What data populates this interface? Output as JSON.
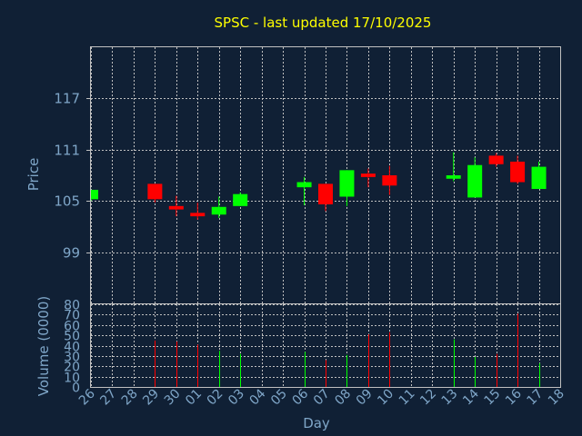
{
  "chart_data": [
    {
      "type": "candlestick",
      "title": "SPSC - last updated 17/10/2025",
      "ylabel": "Price",
      "xlabel": "Day",
      "ylim": [
        93,
        123
      ],
      "y_ticks": [
        "117",
        "111",
        "105",
        "99"
      ],
      "y_tick_values": [
        117,
        111,
        105,
        99
      ],
      "x_tick_labels": [
        "26",
        "27",
        "28",
        "29",
        "30",
        "01",
        "02",
        "03",
        "04",
        "05",
        "06",
        "07",
        "08",
        "09",
        "10",
        "11",
        "12",
        "13",
        "14",
        "15",
        "16",
        "17",
        "18"
      ],
      "grid": true,
      "colors": {
        "up": "#00ff00",
        "down": "#ff0000",
        "title": "#ffff00",
        "text": "#7fa6c8",
        "background": "#102035",
        "grid": "#c0c0c0"
      },
      "candles": [
        {
          "day": "26",
          "open": 105.2,
          "high": 106.3,
          "low": 105.0,
          "close": 106.3
        },
        {
          "day": "29",
          "open": 107.0,
          "high": 107.0,
          "low": 104.8,
          "close": 105.2
        },
        {
          "day": "30",
          "open": 104.4,
          "high": 105.6,
          "low": 103.2,
          "close": 104.0
        },
        {
          "day": "01",
          "open": 103.6,
          "high": 104.8,
          "low": 102.8,
          "close": 103.2
        },
        {
          "day": "02",
          "open": 103.4,
          "high": 105.5,
          "low": 103.0,
          "close": 104.3
        },
        {
          "day": "03",
          "open": 104.4,
          "high": 106.0,
          "low": 104.4,
          "close": 105.8
        },
        {
          "day": "06",
          "open": 106.6,
          "high": 107.8,
          "low": 104.5,
          "close": 107.2
        },
        {
          "day": "07",
          "open": 107.0,
          "high": 107.0,
          "low": 103.8,
          "close": 104.6
        },
        {
          "day": "08",
          "open": 105.5,
          "high": 108.6,
          "low": 104.4,
          "close": 108.6
        },
        {
          "day": "09",
          "open": 108.2,
          "high": 108.8,
          "low": 106.6,
          "close": 107.8
        },
        {
          "day": "10",
          "open": 108.0,
          "high": 109.1,
          "low": 105.7,
          "close": 106.8
        },
        {
          "day": "13",
          "open": 107.6,
          "high": 110.7,
          "low": 107.3,
          "close": 108.0
        },
        {
          "day": "14",
          "open": 105.4,
          "high": 110.1,
          "low": 105.4,
          "close": 109.2
        },
        {
          "day": "15",
          "open": 110.3,
          "high": 110.6,
          "low": 109.0,
          "close": 109.3
        },
        {
          "day": "16",
          "open": 109.6,
          "high": 110.3,
          "low": 107.0,
          "close": 107.2
        },
        {
          "day": "17",
          "open": 106.4,
          "high": 109.6,
          "low": 106.4,
          "close": 109.0
        }
      ]
    },
    {
      "type": "bar",
      "ylabel": "Volume (0000)",
      "ylim": [
        0,
        80
      ],
      "y_ticks": [
        "80",
        "70",
        "60",
        "50",
        "40",
        "30",
        "20",
        "10",
        "0"
      ],
      "y_tick_values": [
        80,
        70,
        60,
        50,
        40,
        30,
        20,
        10,
        0
      ],
      "grid": true,
      "bars": [
        {
          "day": "29",
          "volume": 45,
          "color": "#ff0000"
        },
        {
          "day": "30",
          "volume": 44,
          "color": "#ff0000"
        },
        {
          "day": "01",
          "volume": 41,
          "color": "#ff0000"
        },
        {
          "day": "02",
          "volume": 35,
          "color": "#00ff00"
        },
        {
          "day": "03",
          "volume": 32,
          "color": "#00ff00"
        },
        {
          "day": "06",
          "volume": 34,
          "color": "#00ff00"
        },
        {
          "day": "07",
          "volume": 26,
          "color": "#ff0000"
        },
        {
          "day": "08",
          "volume": 31,
          "color": "#00ff00"
        },
        {
          "day": "09",
          "volume": 51,
          "color": "#ff0000"
        },
        {
          "day": "10",
          "volume": 53,
          "color": "#ff0000"
        },
        {
          "day": "13",
          "volume": 46,
          "color": "#00ff00"
        },
        {
          "day": "14",
          "volume": 29,
          "color": "#00ff00"
        },
        {
          "day": "15",
          "volume": 32,
          "color": "#ff0000"
        },
        {
          "day": "16",
          "volume": 71,
          "color": "#ff0000"
        },
        {
          "day": "17",
          "volume": 23,
          "color": "#00ff00"
        }
      ]
    }
  ]
}
